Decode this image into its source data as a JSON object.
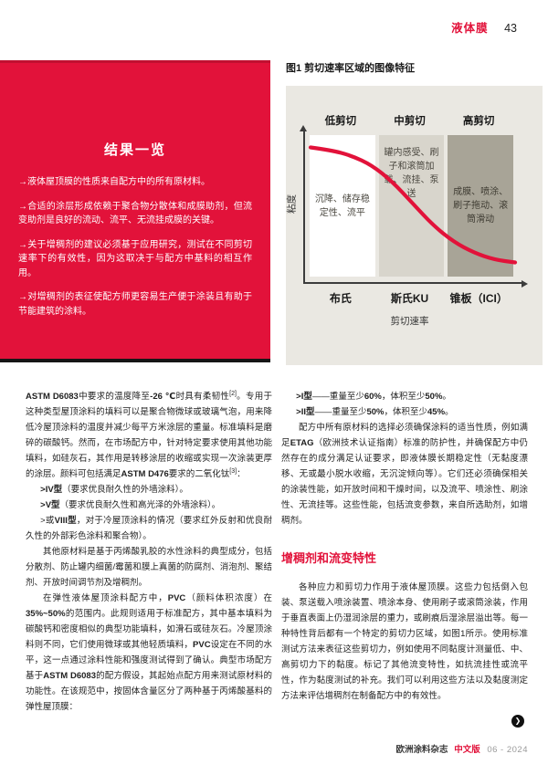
{
  "meta": {
    "accent": "#e2123a",
    "chart_bg": "#eae8e2",
    "zone_mid": "#d8d5cc",
    "zone_high": "#a8a497"
  },
  "header": {
    "section": "液体膜",
    "page_number": "43"
  },
  "summary_box": {
    "title": "结果一览",
    "bullets": [
      "→液体屋顶膜的性质来自配方中的所有原材料。",
      "→合适的涂层形成依赖于聚合物分散体和成膜助剂，但流变助剂是良好的流动、流平、无流挂成膜的关键。",
      "→关于增稠剂的建议必须基于应用研究，测试在不同剪切速率下的有效性，因为这取决于与配方中基料的相互作用。",
      "→对增稠剂的表征使配方师更容易生产便于涂装且有助于节能建筑的涂料。"
    ]
  },
  "figure": {
    "caption": "图1 剪切速率区域的图像特征"
  },
  "chart_data": {
    "type": "line",
    "title": "图1 剪切速率区域的图像特征",
    "xlabel": "剪切速率",
    "ylabel": "粘度",
    "axis_numeric": false,
    "grid": false,
    "x_ticks": [
      "布氏",
      "斯氏KU",
      "锥板（ICI）"
    ],
    "zones": [
      {
        "label": "低剪切",
        "instrument": "布氏",
        "annotation": "沉降、储存稳定性、流平"
      },
      {
        "label": "中剪切",
        "instrument": "斯氏KU",
        "annotation": "罐内感受、刷子和滚筒加载、流挂、泵送"
      },
      {
        "label": "高剪切",
        "instrument": "锥板（ICI）",
        "annotation": "成膜、喷涂、刷子拖动、滚筒滑动"
      }
    ],
    "series": [
      {
        "name": "粘度-剪切速率曲线",
        "color": "#e2123a",
        "x_normalized": [
          0,
          0.1,
          0.2,
          0.3,
          0.4,
          0.5,
          0.6,
          0.7,
          0.8,
          0.9,
          1.0
        ],
        "y_normalized": [
          0.93,
          0.91,
          0.87,
          0.8,
          0.68,
          0.52,
          0.36,
          0.24,
          0.16,
          0.11,
          0.09
        ]
      }
    ]
  },
  "article": {
    "left": {
      "p1": [
        {
          "t": "ASTM D6083",
          "b": true
        },
        {
          "t": "中要求的温度降至",
          "b": false
        },
        {
          "t": "-26 ℃",
          "b": true
        },
        {
          "t": "时具有柔韧性",
          "b": false
        },
        {
          "t": "[2]",
          "b": false,
          "sup": true
        },
        {
          "t": "。专用于这种类型屋顶涂料的填料可以是聚合物微球或玻璃气泡，用来降低冷屋顶涂料的温度并减少每平方米涂层的重量。标准填料是磨碎的碳酸钙。然而，在市场配方中，针对特定要求使用其他功能填料，如硅灰石，其作用是转移涂层的收缩或实现一次涂装更厚的涂层。颜料可包括满足",
          "b": false
        },
        {
          "t": "ASTM D476",
          "b": true
        },
        {
          "t": "要求的二氧化钛",
          "b": false
        },
        {
          "t": "[3]",
          "b": false,
          "sup": true
        },
        {
          "t": "：",
          "b": false
        }
      ],
      "list": [
        [
          {
            "t": ">IV型",
            "b": true
          },
          {
            "t": "（要求优良耐久性的外墙涂料）。",
            "b": false
          }
        ],
        [
          {
            "t": ">V型",
            "b": true
          },
          {
            "t": "（要求优良耐久性和高光泽的外墙涂料）。",
            "b": false
          }
        ],
        [
          {
            "t": ">或",
            "b": false
          },
          {
            "t": "VIII型",
            "b": true
          },
          {
            "t": "，对于冷屋顶涂料的情况（要求红外反射和优良耐久性的外部彩色涂料和聚合物）。",
            "b": false
          }
        ]
      ],
      "p2": [
        {
          "t": "其他原材料是基于丙烯酸乳胶的水性涂料的典型成分，包括分散剂、防止罐内细菌/霉菌和膜上真菌的防腐剂、消泡剂、聚结剂、开放时间调节剂及增稠剂。",
          "b": false
        }
      ],
      "p3": [
        {
          "t": "在弹性液体屋顶涂料配方中，",
          "b": false
        },
        {
          "t": "PVC",
          "b": true
        },
        {
          "t": "（颜料体积浓度）在",
          "b": false
        },
        {
          "t": "35%~50%",
          "b": true
        },
        {
          "t": "的范围内。此规则适用于标准配方，其中基本填料为碳酸钙和密度相似的典型功能填料，如滑石或硅灰石。冷屋顶涂料则不同，它们使用微球或其他轻质填料，",
          "b": false
        },
        {
          "t": "PVC",
          "b": true
        },
        {
          "t": "设定在不同的水平，这一点通过涂料性能和强度测试得到了确认。典型市场配方基于",
          "b": false
        },
        {
          "t": "ASTM D6083",
          "b": true
        },
        {
          "t": "的配方假设，其起始点配方用来测试原材料的功能性。在该规范中，按固体含量区分了两种基于丙烯酸基料的弹性屋顶膜：",
          "b": false
        }
      ]
    },
    "right": {
      "list": [
        [
          {
            "t": ">I型",
            "b": true
          },
          {
            "t": "——重量至少",
            "b": false
          },
          {
            "t": "60%",
            "b": true
          },
          {
            "t": "，体积至少",
            "b": false
          },
          {
            "t": "50%",
            "b": true
          },
          {
            "t": "。",
            "b": false
          }
        ],
        [
          {
            "t": ">II型",
            "b": true
          },
          {
            "t": "——重量至少",
            "b": false
          },
          {
            "t": "50%",
            "b": true
          },
          {
            "t": "，体积至少",
            "b": false
          },
          {
            "t": "45%",
            "b": true
          },
          {
            "t": "。",
            "b": false
          }
        ]
      ],
      "p1": [
        {
          "t": "配方中所有原材料的选择必须确保涂料的适当性质，例如满足",
          "b": false
        },
        {
          "t": "ETAG",
          "b": true
        },
        {
          "t": "（欧洲技术认证指南）标准的防护性，并确保配方中仍然存在的成分满足认证要求，即液体膜长期稳定性（无黏度漂移、无或最小脱水收缩，无沉淀倾向等）。它们还必须确保相关的涂装性能，如开放时间和干燥时间，以及流平、喷涂性、刷涂性、无流挂等。这些性能，包括流变参数，来自所选助剂，如增稠剂。",
          "b": false
        }
      ],
      "heading": "增稠剂和流变特性",
      "p2": [
        {
          "t": "各种应力和剪切力作用于液体屋顶膜。这些力包括倒入包装、泵送载入喷涂装置、喷涂本身、使用刷子或滚筒涂装，作用于垂直表面上仍湿润涂层的重力，或刷痕后湿涂层溢出等。每一种特性背后都有一个特定的剪切力区域，如图1所示。使用标准测试方法来表征这些剪切力，例如使用不同黏度计测量低、中、高剪切力下的黏度。标记了其他流变特性，如抗流挂性或流平性，作为黏度测试的补充。我们可以利用这些方法以及黏度测定方法来评估增稠剂在制备配方中的有效性。",
          "b": false
        }
      ]
    }
  },
  "pagination_arrow": "❯",
  "footer": {
    "journal": "欧洲涂料杂志",
    "edition": "中文版",
    "issue": "06 - 2024"
  }
}
